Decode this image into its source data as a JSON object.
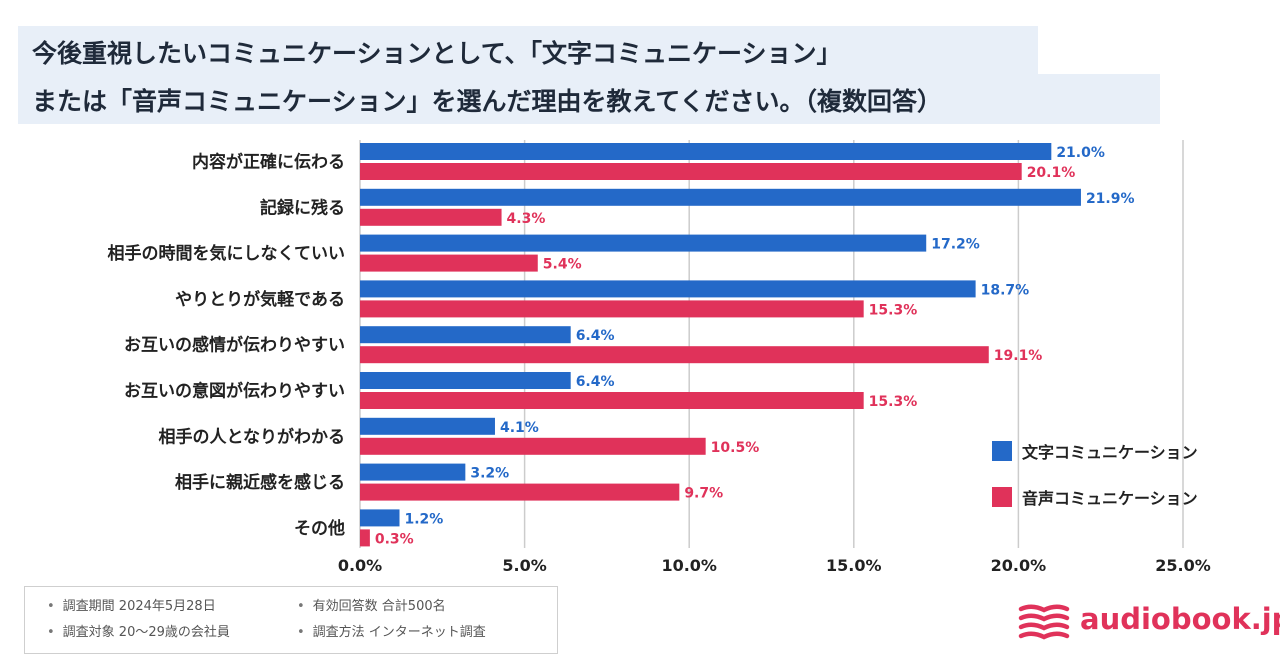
{
  "title": {
    "line1": "今後重視したいコミュニケーションとして、「文字コミュニケーション」",
    "line2": "または「音声コミュニケーション」を選んだ理由を教えてください。（複数回答）"
  },
  "colors": {
    "text": "#2469c8",
    "voice": "#e0325a",
    "grid": "#cccccc"
  },
  "chart_data": {
    "type": "bar",
    "orientation": "horizontal",
    "categories": [
      "内容が正確に伝わる",
      "記録に残る",
      "相手の時間を気にしなくていい",
      "やりとりが気軽である",
      "お互いの感情が伝わりやすい",
      "お互いの意図が伝わりやすい",
      "相手の人となりがわかる",
      "相手に親近感を感じる",
      "その他"
    ],
    "series": [
      {
        "name": "文字コミュニケーション",
        "color": "#2469c8",
        "values": [
          21.0,
          21.9,
          17.2,
          18.7,
          6.4,
          6.4,
          4.1,
          3.2,
          1.2
        ]
      },
      {
        "name": "音声コミュニケーション",
        "color": "#e0325a",
        "values": [
          20.1,
          4.3,
          5.4,
          15.3,
          19.1,
          15.3,
          10.5,
          9.7,
          0.3
        ]
      }
    ],
    "xlim": [
      0,
      25
    ],
    "xticks": [
      0,
      5,
      10,
      15,
      20,
      25
    ],
    "xtick_labels": [
      "0.0%",
      "5.0%",
      "10.0%",
      "15.0%",
      "20.0%",
      "25.0%"
    ],
    "value_suffix": "%",
    "grid": true,
    "legend_position": "right"
  },
  "footnote": {
    "period": "調査期間 2024年5月28日",
    "target": "調査対象 20〜29歳の会社員",
    "responses": "有効回答数 合計500名",
    "method": "調査方法 インターネット調査"
  },
  "logo": {
    "text": "audiobook.jp"
  }
}
